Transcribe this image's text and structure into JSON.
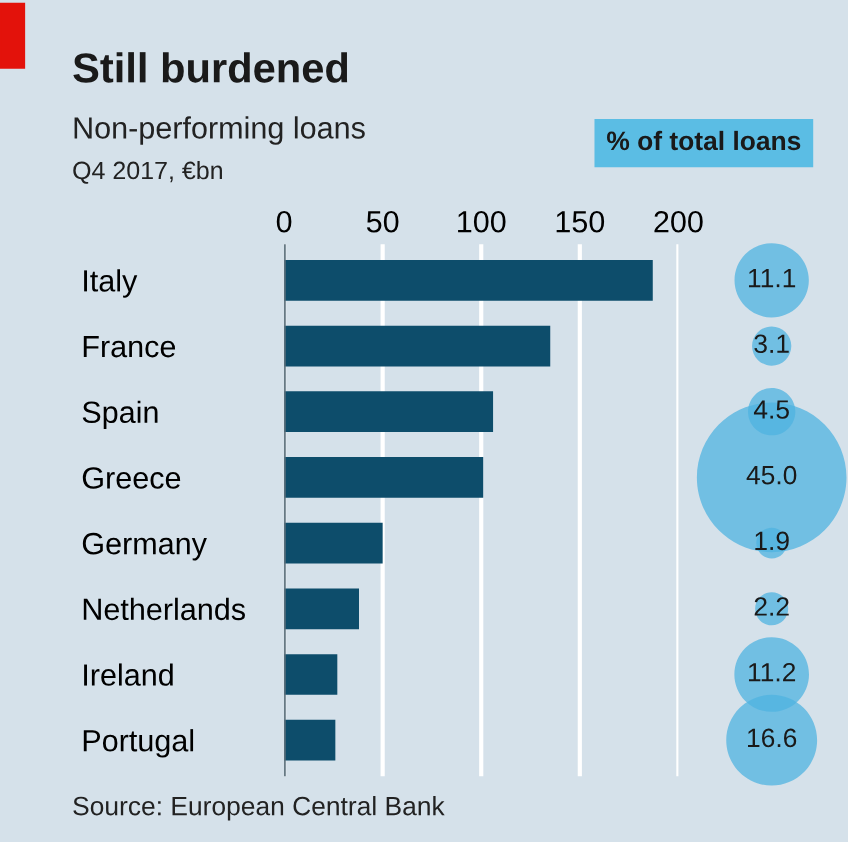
{
  "chart_data": [
    {
      "type": "bar",
      "orientation": "horizontal",
      "title": "Still burdened",
      "subtitle": "Non-performing loans",
      "categories": [
        "Italy",
        "France",
        "Spain",
        "Greece",
        "Germany",
        "Netherlands",
        "Ireland",
        "Portugal"
      ],
      "values": [
        187,
        135,
        106,
        101,
        50,
        38,
        27,
        26
      ],
      "color": "#0d4d6b",
      "xlim": [
        0,
        200
      ],
      "xticks": [
        0,
        50,
        100,
        150,
        200
      ],
      "grid": "x",
      "tick_labels": "x",
      "annotations": [
        "Q4 2017, €bn",
        "Source: European Central Bank"
      ]
    },
    {
      "type": "other",
      "title": "% of total loans",
      "categories": [
        null,
        null,
        null,
        null,
        null,
        null,
        null,
        null
      ],
      "values": [
        11.1,
        3.1,
        4.5,
        45.0,
        1.9,
        2.2,
        11.2,
        16.6
      ],
      "color": "#4fb3e0",
      "value_labels": [
        "11.1",
        "3.1",
        "4.5",
        "45.0",
        "1.9",
        "2.2",
        "11.2",
        "16.6"
      ]
    }
  ]
}
